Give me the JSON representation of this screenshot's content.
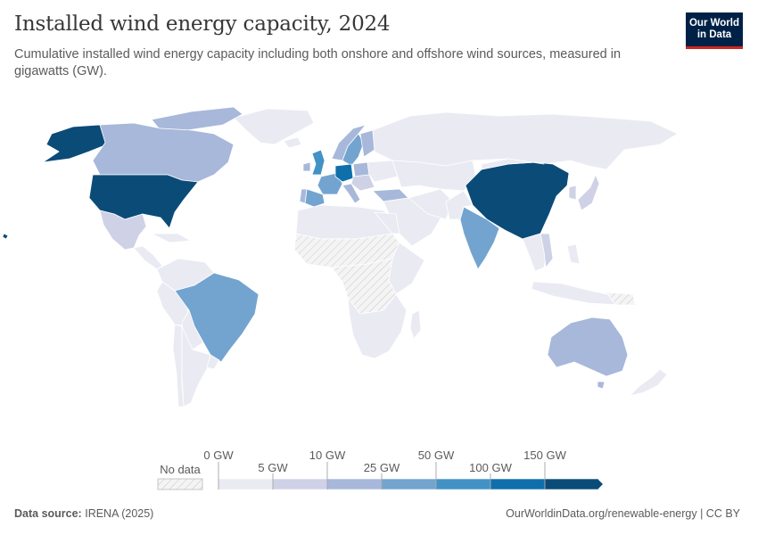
{
  "header": {
    "title": "Installed wind energy capacity, 2024",
    "subtitle": "Cumulative installed wind energy capacity including both onshore and offshore wind sources, measured in gigawatts (GW).",
    "logo_line1": "Our World",
    "logo_line2": "in Data"
  },
  "legend": {
    "no_data_label": "No data",
    "bins": [
      {
        "label_top": "0 GW",
        "label_bottom": "5 GW",
        "color": "#eaeaf3"
      },
      {
        "label_top": "10 GW",
        "color": "#cfd1e6"
      },
      {
        "label_bottom": "25 GW",
        "color": "#a7b8da"
      },
      {
        "label_top": "50 GW",
        "color": "#73a4d0"
      },
      {
        "label_bottom": "100 GW",
        "color": "#4292c6"
      },
      {
        "label_top": "150 GW",
        "color": "#0f6fab"
      },
      {
        "color": "#0b4b78"
      }
    ],
    "tick_labels": [
      "0 GW",
      "5 GW",
      "10 GW",
      "25 GW",
      "50 GW",
      "100 GW",
      "150 GW"
    ]
  },
  "footer": {
    "source_label": "Data source:",
    "source": "IRENA (2025)",
    "url": "OurWorldinData.org/renewable-energy | CC BY"
  },
  "colors": {
    "bin0": "#eaeaf3",
    "bin1": "#cfd1e6",
    "bin2": "#a7b8da",
    "bin3": "#73a4d0",
    "bin4": "#4292c6",
    "bin5": "#0f6fab",
    "bin6": "#0b4b78",
    "no_data": "#f2f2f2",
    "border": "#ffffff",
    "brand": "#002147",
    "brand_accent": "#ce261e"
  }
}
